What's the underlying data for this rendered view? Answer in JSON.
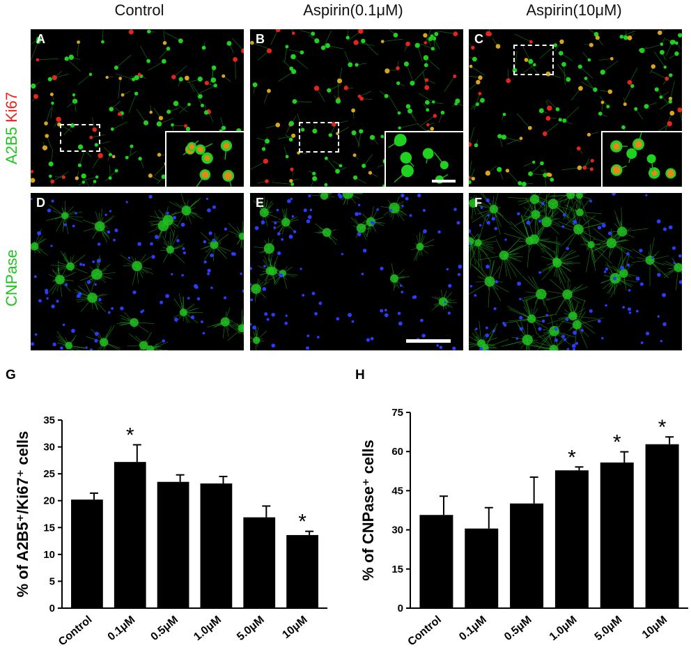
{
  "columns": [
    "Control",
    "Aspirin(0.1μM)",
    "Aspirin(10μM)"
  ],
  "row_labels": {
    "row1_green": "A2B5",
    "row1_red": "Ki67",
    "row2": "CNPase"
  },
  "panel_letters": [
    "A",
    "B",
    "C",
    "D",
    "E",
    "F"
  ],
  "figure_letters": [
    "G",
    "H"
  ],
  "colors": {
    "green": "#1fd21f",
    "red": "#e8231c",
    "blue": "#2a3cff",
    "bar": "#000000"
  },
  "chart_data": [
    {
      "type": "bar",
      "title": "",
      "ylabel": "% of A2B5⁺/Ki67⁺ cells",
      "xlabel": "",
      "categories": [
        "Control",
        "0.1μM",
        "0.5μM",
        "1.0μM",
        "5.0μM",
        "10μM"
      ],
      "values": [
        20.2,
        27.2,
        23.5,
        23.2,
        16.9,
        13.6
      ],
      "errors": [
        1.2,
        3.2,
        1.3,
        1.3,
        2.1,
        0.7
      ],
      "significant": [
        false,
        true,
        false,
        false,
        false,
        true
      ],
      "ylim": [
        0,
        35
      ],
      "yticks": [
        0,
        5,
        10,
        15,
        20,
        25,
        30,
        35
      ],
      "marker": "*"
    },
    {
      "type": "bar",
      "title": "",
      "ylabel": "% of CNPase⁺ cells",
      "xlabel": "",
      "categories": [
        "Control",
        "0.1μM",
        "0.5μM",
        "1.0μM",
        "5.0μM",
        "10μM"
      ],
      "values": [
        35.7,
        30.5,
        40.1,
        52.8,
        55.8,
        62.8
      ],
      "errors": [
        7.2,
        8.0,
        10.1,
        1.3,
        4.1,
        2.8
      ],
      "significant": [
        false,
        false,
        false,
        true,
        true,
        true
      ],
      "ylim": [
        0,
        75
      ],
      "yticks": [
        0,
        15,
        30,
        45,
        60,
        75
      ],
      "marker": "*"
    }
  ]
}
